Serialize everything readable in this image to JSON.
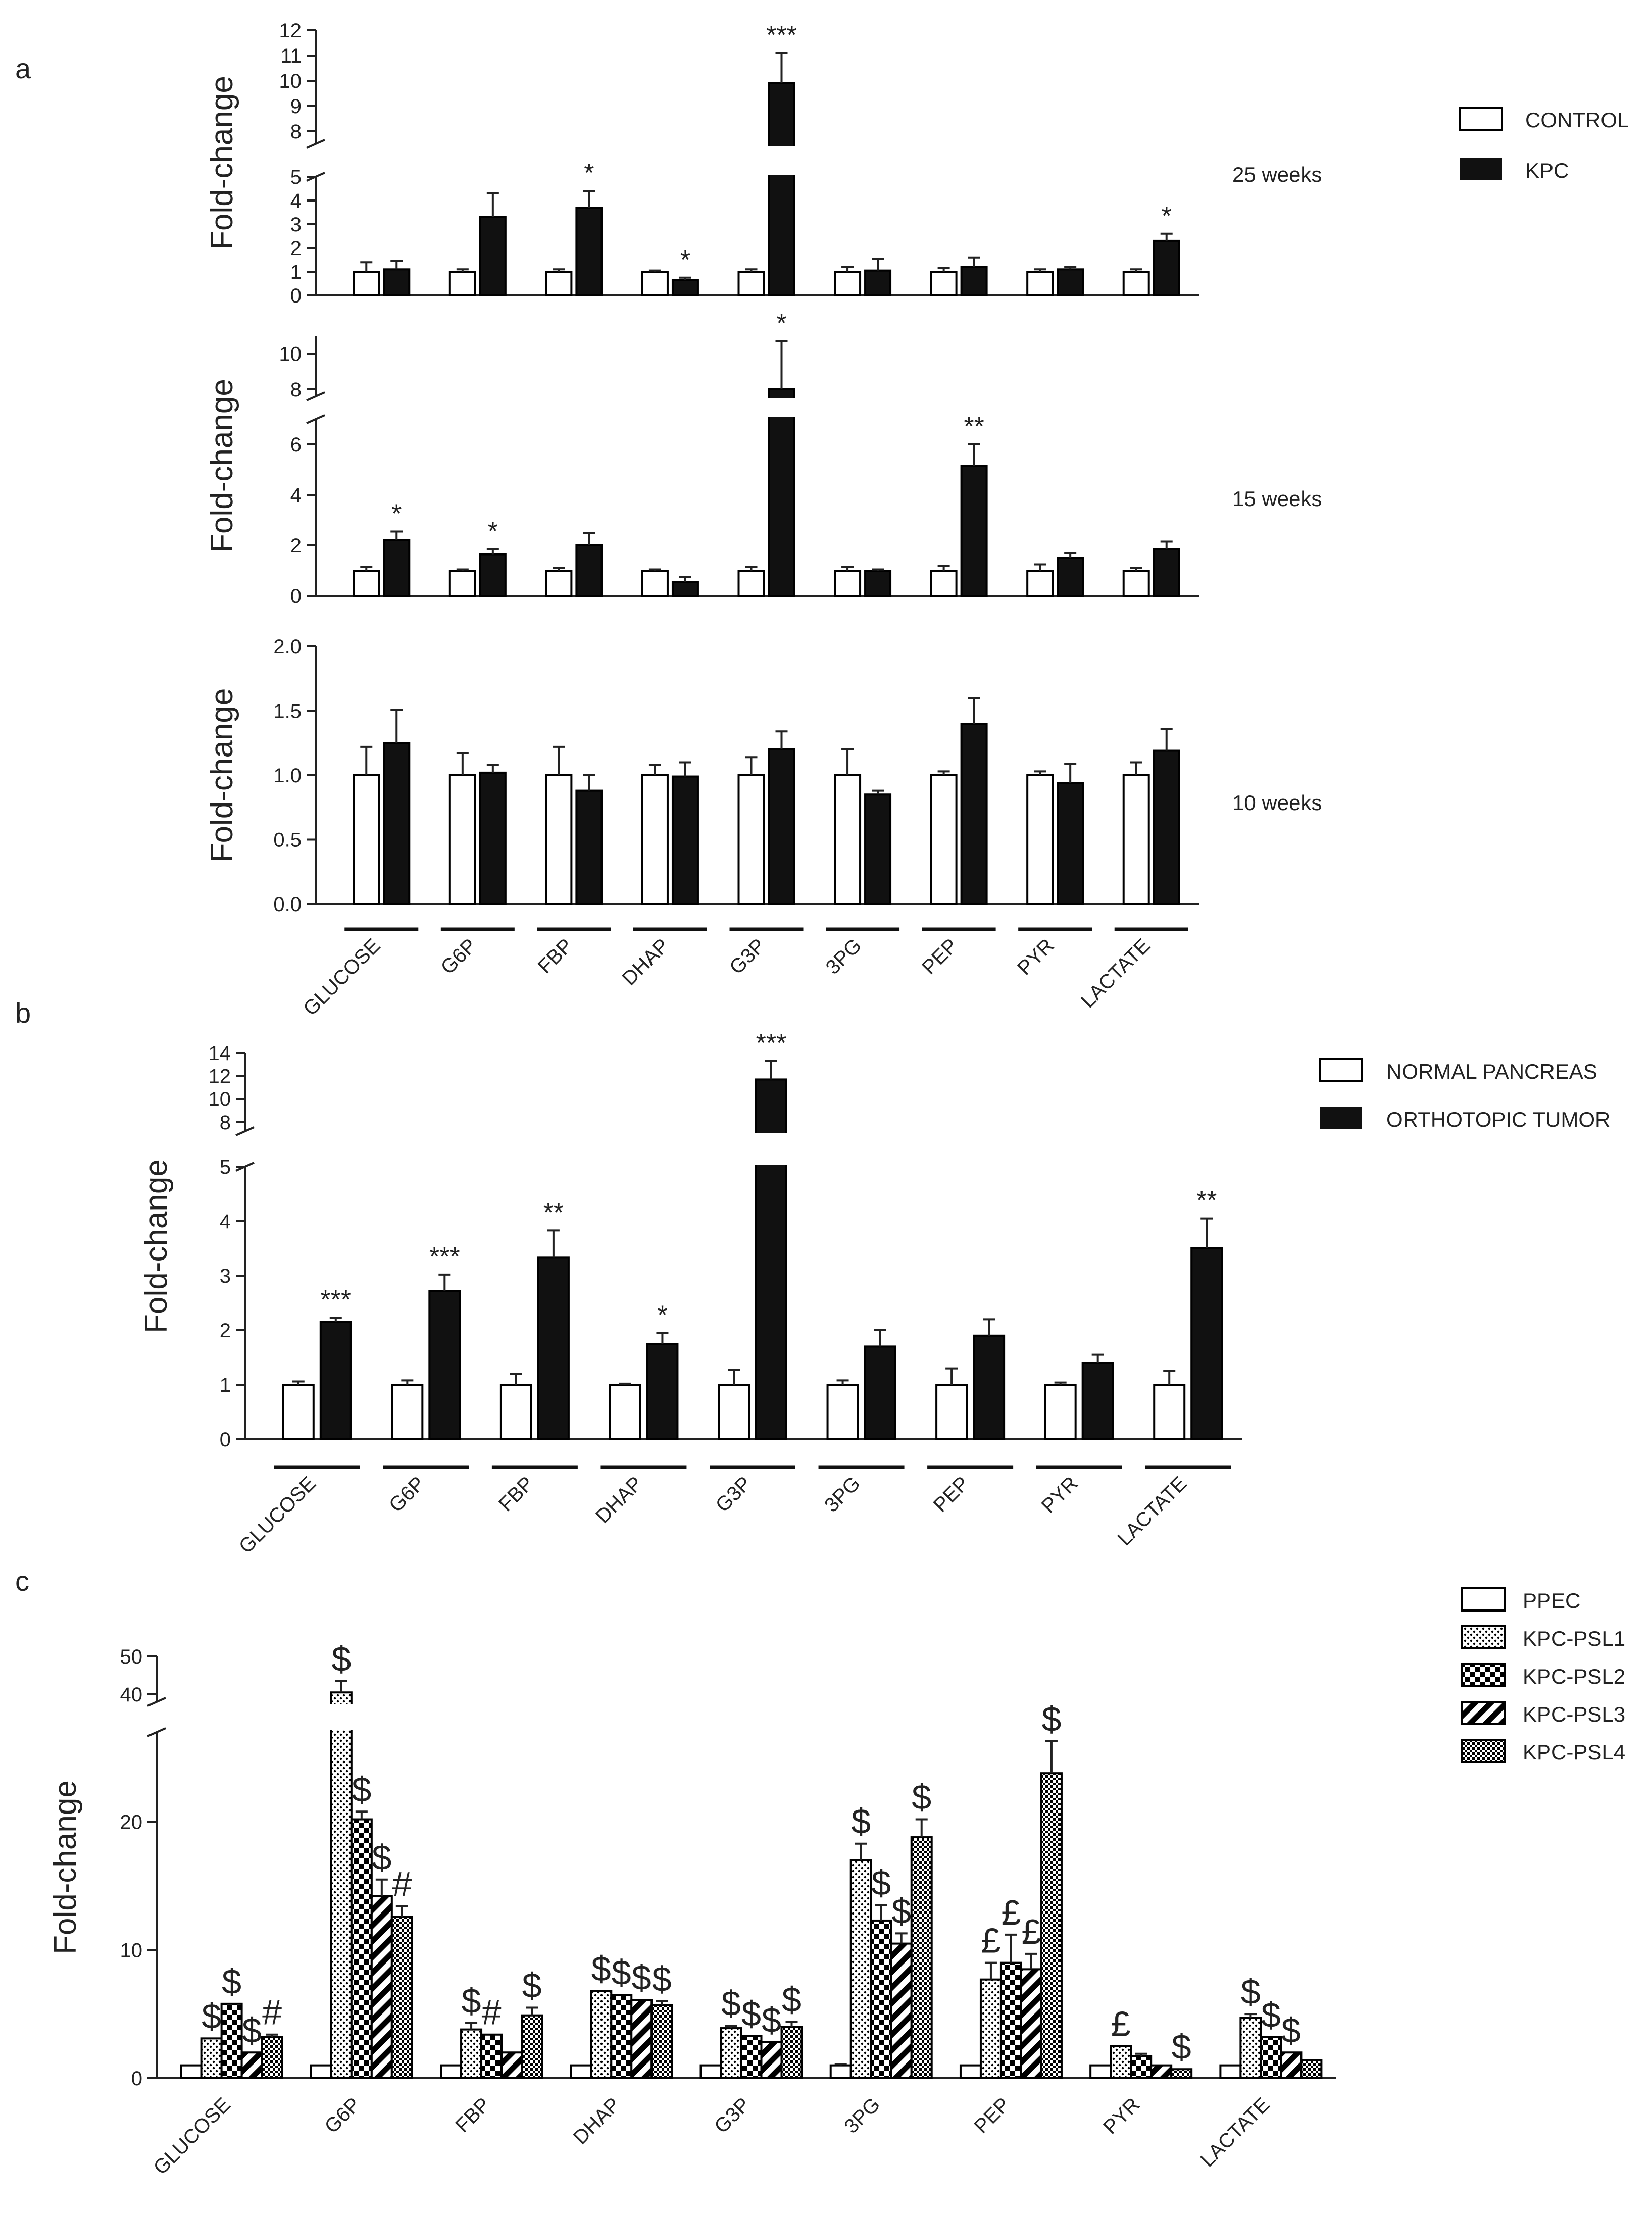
{
  "panel_letters": [
    "a",
    "b",
    "c"
  ],
  "patterns": [
    "pat-dots",
    "pat-checker",
    "pat-stripes",
    "pat-fine"
  ],
  "chart_data": [
    {
      "type": "bar",
      "panel": "a",
      "subtitle": "25 weeks",
      "ylabel": "Fold-change",
      "categories": [
        "GLUCOSE",
        "G6P",
        "FBP",
        "DHAP",
        "G3P",
        "3PG",
        "PEP",
        "PYR",
        "LACTATE"
      ],
      "series": [
        {
          "name": "CONTROL",
          "color": "#ffffff",
          "values": [
            1,
            1,
            1,
            1,
            1,
            1,
            1,
            1,
            1
          ],
          "errors": [
            0.4,
            0.1,
            0.1,
            0.05,
            0.1,
            0.2,
            0.15,
            0.1,
            0.1
          ]
        },
        {
          "name": "KPC",
          "color": "#000000",
          "values": [
            1.1,
            3.3,
            3.7,
            0.65,
            9.9,
            1.05,
            1.2,
            1.1,
            2.3
          ],
          "errors": [
            0.35,
            1.0,
            0.7,
            0.1,
            1.2,
            0.5,
            0.4,
            0.1,
            0.3
          ],
          "sig": [
            "",
            "",
            "*",
            "*",
            "***",
            "",
            "",
            "",
            "*"
          ]
        }
      ],
      "yticks": [
        0,
        1,
        2,
        3,
        4,
        5,
        8,
        9,
        10,
        11,
        12
      ],
      "ylim": [
        0,
        12
      ],
      "break": [
        5,
        7.5
      ]
    },
    {
      "type": "bar",
      "panel": "a",
      "subtitle": "15 weeks",
      "ylabel": "Fold-change",
      "categories": [
        "GLUCOSE",
        "G6P",
        "FBP",
        "DHAP",
        "G3P",
        "3PG",
        "PEP",
        "PYR",
        "LACTATE"
      ],
      "series": [
        {
          "name": "CONTROL",
          "color": "#ffffff",
          "values": [
            1,
            1,
            1,
            1,
            1,
            1,
            1,
            1,
            1
          ],
          "errors": [
            0.15,
            0.05,
            0.1,
            0.05,
            0.15,
            0.15,
            0.2,
            0.25,
            0.1
          ]
        },
        {
          "name": "KPC",
          "color": "#000000",
          "values": [
            2.2,
            1.65,
            2.0,
            0.55,
            8.0,
            1.0,
            5.15,
            1.5,
            1.85
          ],
          "errors": [
            0.35,
            0.2,
            0.5,
            0.2,
            2.7,
            0.05,
            0.85,
            0.2,
            0.3
          ],
          "sig": [
            "*",
            "*",
            "",
            "",
            "*",
            "",
            "**",
            "",
            ""
          ]
        }
      ],
      "yticks": [
        0,
        2,
        4,
        6,
        8,
        10
      ],
      "ylim": [
        0,
        11
      ],
      "break": [
        7,
        7.6
      ]
    },
    {
      "type": "bar",
      "panel": "a",
      "subtitle": "10 weeks",
      "ylabel": "Fold-change",
      "categories": [
        "GLUCOSE",
        "G6P",
        "FBP",
        "DHAP",
        "G3P",
        "3PG",
        "PEP",
        "PYR",
        "LACTATE"
      ],
      "category_labels": [
        "GLUCOSE",
        "G6P",
        "FBP",
        "DHAP",
        "G3P",
        "3PG",
        "PEP",
        "PYR",
        "LACTATE"
      ],
      "series": [
        {
          "name": "CONTROL",
          "color": "#ffffff",
          "values": [
            1,
            1,
            1,
            1,
            1,
            1,
            1,
            1,
            1
          ],
          "errors": [
            0.22,
            0.17,
            0.22,
            0.08,
            0.14,
            0.2,
            0.03,
            0.03,
            0.1
          ]
        },
        {
          "name": "KPC",
          "color": "#000000",
          "values": [
            1.25,
            1.02,
            0.88,
            0.99,
            1.2,
            0.85,
            1.4,
            0.94,
            1.19
          ],
          "errors": [
            0.26,
            0.06,
            0.12,
            0.11,
            0.14,
            0.03,
            0.2,
            0.15,
            0.17
          ]
        }
      ],
      "yticks": [
        "0.0",
        "0.5",
        "1.0",
        "1.5",
        "2.0"
      ],
      "ylim": [
        0,
        2.0
      ]
    },
    {
      "type": "bar",
      "panel": "b",
      "ylabel": "Fold-change",
      "categories": [
        "GLUCOSE",
        "G6P",
        "FBP",
        "DHAP",
        "G3P",
        "3PG",
        "PEP",
        "PYR",
        "LACTATE"
      ],
      "category_labels": [
        "GLUCOSE",
        "G6P",
        "FBP",
        "DHAP",
        "G3P",
        "3PG",
        "PEP",
        "PYR",
        "LACTATE"
      ],
      "series": [
        {
          "name": "NORMAL PANCREAS",
          "color": "#ffffff",
          "values": [
            1,
            1,
            1,
            1,
            1,
            1,
            1,
            1,
            1
          ],
          "errors": [
            0.06,
            0.08,
            0.2,
            0.02,
            0.27,
            0.08,
            0.3,
            0.04,
            0.25
          ]
        },
        {
          "name": "ORTHOTOPIC TUMOR",
          "color": "#000000",
          "values": [
            2.15,
            2.72,
            3.33,
            1.75,
            11.7,
            1.7,
            1.9,
            1.4,
            3.5
          ],
          "errors": [
            0.08,
            0.3,
            0.5,
            0.2,
            1.6,
            0.3,
            0.3,
            0.15,
            0.55
          ],
          "sig": [
            "***",
            "***",
            "**",
            "*",
            "***",
            "",
            "",
            "",
            "**"
          ]
        }
      ],
      "yticks": [
        0,
        1,
        2,
        3,
        4,
        5,
        8,
        10,
        12,
        14
      ],
      "ylim": [
        0,
        14
      ],
      "break": [
        5,
        7.2
      ]
    },
    {
      "type": "bar",
      "panel": "c",
      "ylabel": "Fold-change",
      "categories": [
        "GLUCOSE",
        "G6P",
        "FBP",
        "DHAP",
        "G3P",
        "3PG",
        "PEP",
        "PYR",
        "LACTATE"
      ],
      "category_labels": [
        "GLUCOSE",
        "G6P",
        "FBP",
        "DHAP",
        "G3P",
        "3PG",
        "PEP",
        "PYR",
        "LACTATE"
      ],
      "series": [
        {
          "name": "PPEC",
          "values": [
            1.0,
            1.0,
            1.0,
            1.0,
            1.0,
            1.0,
            1.0,
            1.0,
            1.0
          ],
          "errors": [
            0,
            0,
            0,
            0,
            0,
            0.1,
            0,
            0,
            0
          ]
        },
        {
          "name": "KPC-PSL1",
          "values": [
            3.1,
            40.5,
            3.8,
            6.8,
            3.9,
            17.0,
            7.7,
            2.5,
            4.7
          ],
          "errors": [
            0,
            3,
            0.5,
            0,
            0.2,
            1.3,
            1.3,
            0,
            0.3
          ]
        },
        {
          "name": "KPC-PSL2",
          "values": [
            5.8,
            20.2,
            3.4,
            6.5,
            3.3,
            12.3,
            9.0,
            1.7,
            3.2
          ],
          "errors": [
            0,
            0.6,
            0,
            0,
            0,
            1.2,
            2.2,
            0.2,
            0
          ]
        },
        {
          "name": "KPC-PSL3",
          "values": [
            2.0,
            14.2,
            2.0,
            6.1,
            2.8,
            10.5,
            8.5,
            1.0,
            2.0
          ],
          "errors": [
            0,
            1.3,
            0,
            0,
            0,
            0.8,
            1.2,
            0,
            0
          ]
        },
        {
          "name": "KPC-PSL4",
          "values": [
            3.2,
            12.6,
            4.9,
            5.7,
            4.0,
            18.8,
            23.8,
            0.7,
            1.4
          ],
          "errors": [
            0.2,
            0.8,
            0.6,
            0.3,
            0.4,
            1.4,
            2.5,
            0,
            0
          ]
        }
      ],
      "sig": [
        [
          "$",
          "$",
          "$",
          "#"
        ],
        [
          "$",
          "$",
          "$",
          "#"
        ],
        [
          "$",
          "#",
          "",
          "$"
        ],
        [
          "$",
          "$",
          "$",
          "$"
        ],
        [
          "$",
          "$",
          "$",
          "$"
        ],
        [
          "$",
          "$",
          "$",
          "$"
        ],
        [
          "£",
          "£",
          "£",
          "$"
        ],
        [
          "£",
          "",
          "",
          "$"
        ],
        [
          "$",
          "$",
          "$",
          ""
        ]
      ],
      "yticks": [
        0,
        10,
        20,
        40,
        50
      ],
      "ylim": [
        0,
        50
      ],
      "break": [
        27,
        38
      ]
    }
  ],
  "legends": {
    "a": [
      "CONTROL",
      "KPC"
    ],
    "b": [
      "NORMAL PANCREAS",
      "ORTHOTOPIC TUMOR"
    ],
    "c": [
      "PPEC",
      "KPC-PSL1",
      "KPC-PSL2",
      "KPC-PSL3",
      "KPC-PSL4"
    ]
  }
}
